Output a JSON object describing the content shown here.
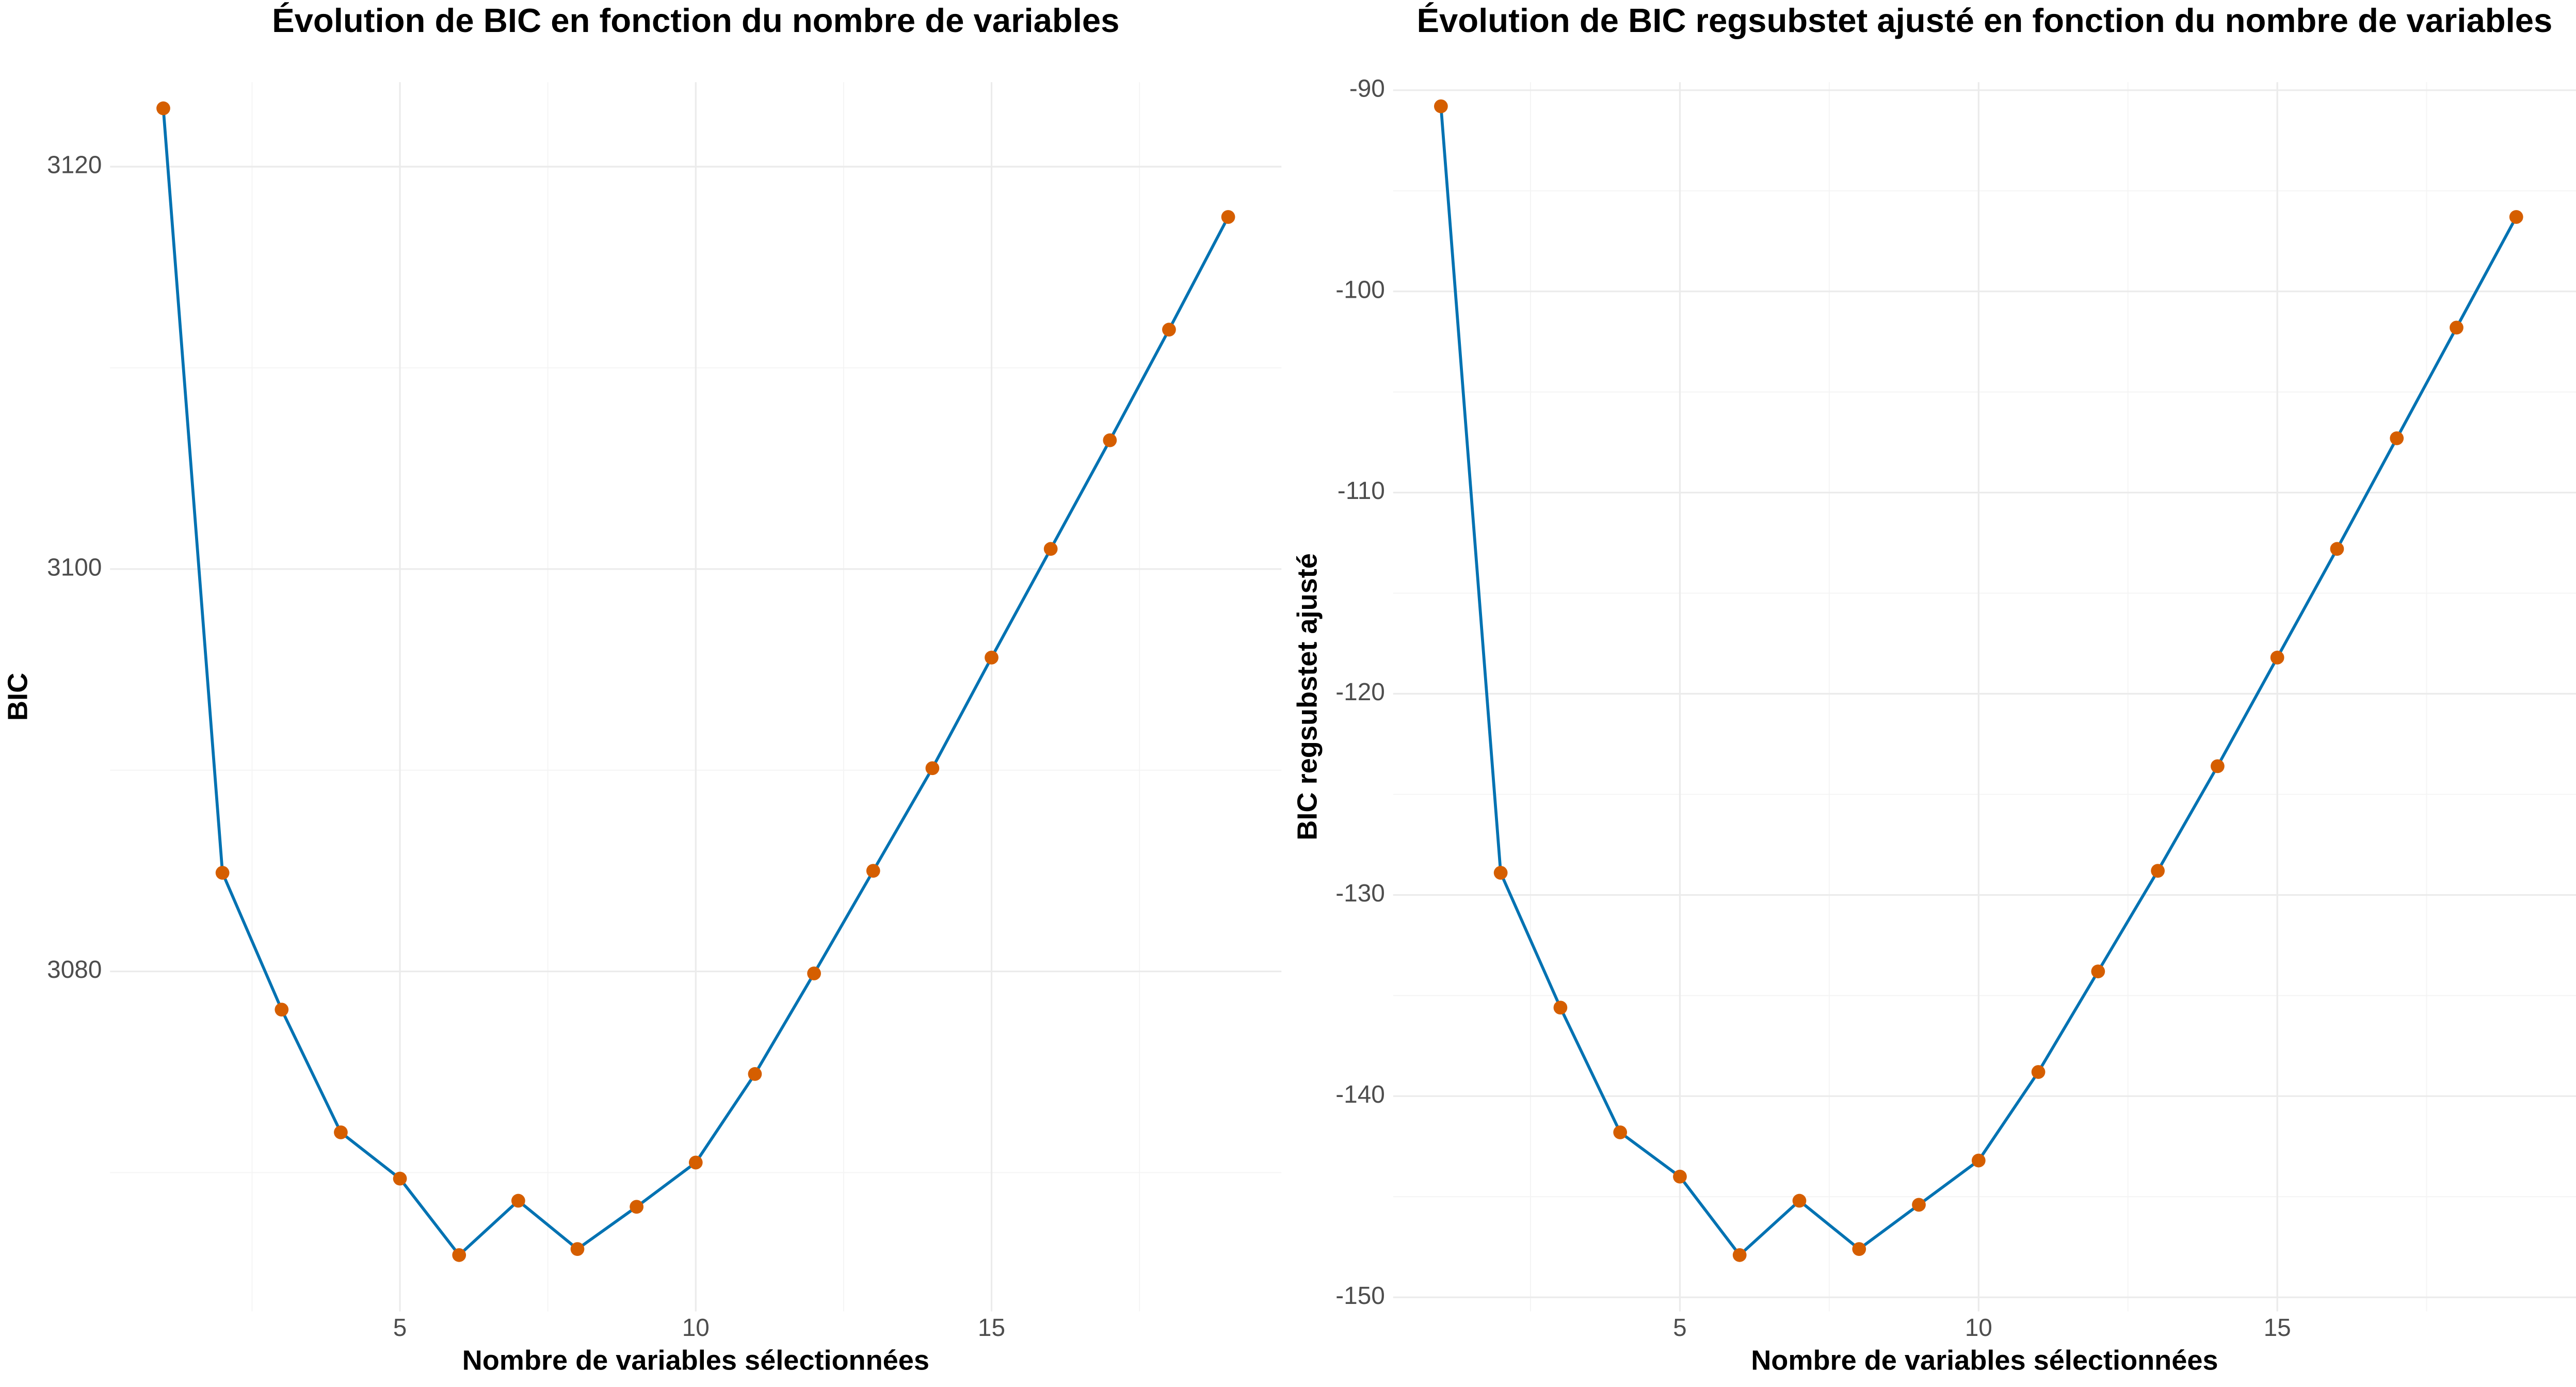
{
  "chart_data": [
    {
      "type": "line",
      "title": "Évolution de BIC en fonction du nombre de variables",
      "x_label": "Nombre de variables sélectionnées",
      "y_label": "BIC",
      "x": [
        1,
        2,
        3,
        4,
        5,
        6,
        7,
        8,
        9,
        10,
        11,
        12,
        13,
        14,
        15,
        16,
        17,
        18,
        19
      ],
      "values": [
        3122.9,
        3084.9,
        3078.1,
        3072.0,
        3069.7,
        3065.9,
        3068.6,
        3066.2,
        3068.3,
        3070.5,
        3074.9,
        3079.9,
        3085.0,
        3090.1,
        3095.6,
        3101.0,
        3106.4,
        3111.9,
        3117.5
      ],
      "line_color": "#0072b2",
      "point_color": "#d55e00",
      "xlim": [
        0.1,
        19.9
      ],
      "xticks": [
        5,
        10,
        15
      ],
      "ylim": [
        3063.1,
        3124.2
      ],
      "yticks": [
        3080,
        3100,
        3120
      ],
      "grid": true
    },
    {
      "type": "line",
      "title": "Évolution de BIC regsubstet ajusté en fonction du nombre de variables",
      "x_label": "Nombre de variables sélectionnées",
      "y_label": "BIC regsubstet ajusté",
      "x": [
        1,
        2,
        3,
        4,
        5,
        6,
        7,
        8,
        9,
        10,
        11,
        12,
        13,
        14,
        15,
        16,
        17,
        18,
        19
      ],
      "values": [
        -90.8,
        -128.9,
        -135.6,
        -141.8,
        -144.0,
        -147.9,
        -145.2,
        -147.6,
        -145.4,
        -143.2,
        -138.8,
        -133.8,
        -128.8,
        -123.6,
        -118.2,
        -112.8,
        -107.3,
        -101.8,
        -96.3
      ],
      "line_color": "#0072b2",
      "point_color": "#d55e00",
      "xlim": [
        0.2,
        20.0
      ],
      "xticks": [
        5,
        10,
        15
      ],
      "ylim": [
        -150.7,
        -89.6
      ],
      "yticks": [
        -150,
        -140,
        -130,
        -120,
        -110,
        -100,
        -90
      ],
      "grid": true
    }
  ]
}
